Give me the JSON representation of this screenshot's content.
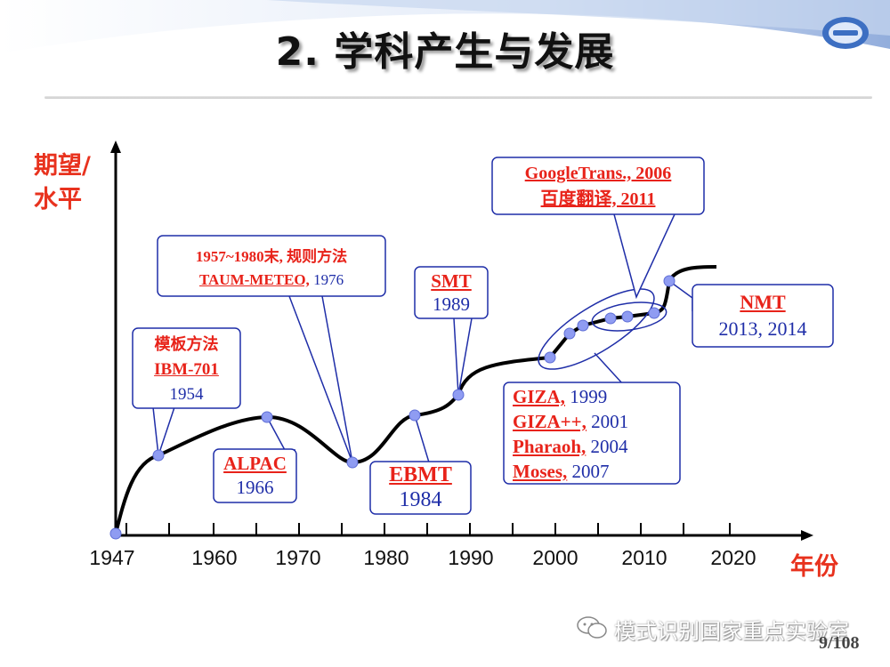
{
  "title": "2. 学科产生与发展",
  "y_axis_title": [
    "期望/",
    "水平"
  ],
  "x_axis_title": "年份",
  "years": [
    "1947",
    "1960",
    "1970",
    "1980",
    "1990",
    "2000",
    "2010",
    "2020"
  ],
  "callouts": {
    "template": {
      "line1": "模板方法",
      "line2": "IBM-701",
      "line3": "1954"
    },
    "rule": {
      "line1": "1957~1980末, 规则方法",
      "line2_red": "TAUM-METEO,",
      "line2_blue": " 1976"
    },
    "alpac": {
      "line1": "ALPAC",
      "line2": "1966"
    },
    "ebmt": {
      "line1": "EBMT",
      "line2": "1984"
    },
    "smt": {
      "line1": "SMT",
      "line2": "1989"
    },
    "google": {
      "line1": "GoogleTrans., 2006",
      "line2": "百度翻译, 2011"
    },
    "giza": [
      {
        "name": "GIZA,",
        "year": " 1999"
      },
      {
        "name": "GIZA++,",
        "year": " 2001"
      },
      {
        "name": "Pharaoh,",
        "year": " 2004"
      },
      {
        "name": "Moses,",
        "year": " 2007"
      }
    ],
    "nmt": {
      "line1": "NMT",
      "line2": "2013, 2014"
    }
  },
  "footer": "模式识别国家重点实验室",
  "page_number": "9/108",
  "colors": {
    "accent_red": "#e8231a",
    "label_blue": "#1f2ea8",
    "point": "#8f9cf2"
  }
}
